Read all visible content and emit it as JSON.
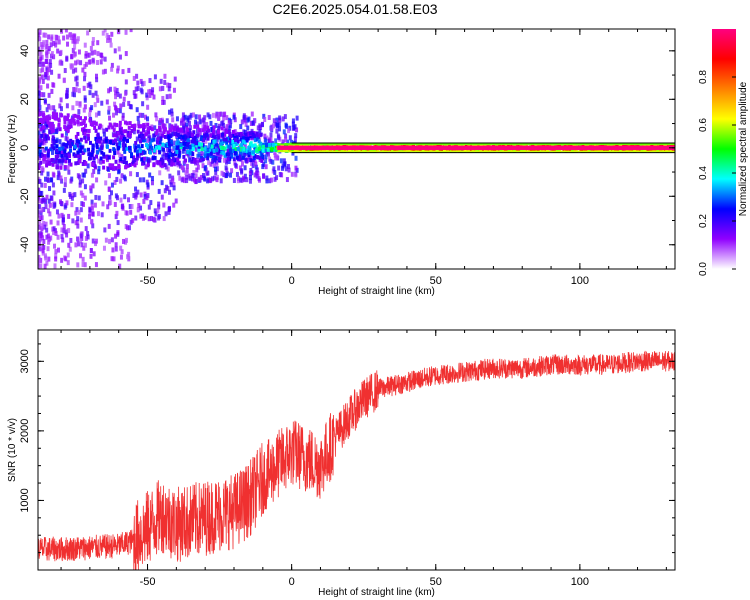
{
  "title": "C2E6.2025.054.01.58.E03",
  "chart_data": [
    {
      "type": "heatmap",
      "xlabel": "Height of straight line (km)",
      "ylabel": "Frequency (Hz)",
      "xlim": [
        -88,
        133
      ],
      "ylim": [
        -50,
        49
      ],
      "xticks": [
        -50,
        0,
        50,
        100
      ],
      "yticks": [
        40,
        20,
        0,
        -20,
        -40
      ],
      "xtick_labels": [
        "-50",
        "0",
        "50",
        "100"
      ],
      "ytick_labels": [
        "40",
        "20",
        "0",
        "-20",
        "-40"
      ],
      "reference_lines_hz": [
        2,
        -2
      ],
      "description_points": [
        {
          "x": -80,
          "f": 3,
          "amp": 0.3
        },
        {
          "x": -60,
          "f": 1,
          "amp": 0.35
        },
        {
          "x": -40,
          "f": 1,
          "amp": 0.4
        },
        {
          "x": -25,
          "f": 2,
          "amp": 0.45
        },
        {
          "x": -10,
          "f": 0,
          "amp": 0.5
        },
        {
          "x": 0,
          "f": 0,
          "amp": 0.9
        },
        {
          "x": 10,
          "f": 0,
          "amp": 0.95
        },
        {
          "x": 50,
          "f": 0,
          "amp": 1.0
        },
        {
          "x": 100,
          "f": 0,
          "amp": 1.0
        },
        {
          "x": 130,
          "f": 0,
          "amp": 1.0
        }
      ],
      "colorbar": {
        "label": "Normalized spectral amplitude",
        "range": [
          0,
          1
        ],
        "ticks": [
          0.0,
          0.2,
          0.4,
          0.6,
          0.8
        ],
        "tick_labels": [
          "0.0",
          "0.2",
          "0.4",
          "0.6",
          "0.8"
        ],
        "colors": [
          "#ffffff",
          "#9000ff",
          "#0000ff",
          "#00ffff",
          "#00ff00",
          "#ffff00",
          "#ff8000",
          "#ff0000",
          "#ff0080"
        ]
      }
    },
    {
      "type": "line",
      "xlabel": "Height of straight line (km)",
      "ylabel": "SNR (10 * v/v)",
      "xlim": [
        -88,
        133
      ],
      "ylim": [
        0,
        3450
      ],
      "xticks": [
        -50,
        0,
        50,
        100
      ],
      "yticks": [
        1000,
        2000,
        3000
      ],
      "xtick_labels": [
        "-50",
        "0",
        "50",
        "100"
      ],
      "ytick_labels": [
        "1000",
        "2000",
        "3000"
      ],
      "color": "#f03030",
      "series": [
        {
          "x": [
            -88,
            -80,
            -70,
            -60,
            -55,
            -50,
            -45,
            -40,
            -35,
            -30,
            -25,
            -20,
            -15,
            -10,
            -5,
            0,
            5,
            10,
            15,
            20,
            25,
            30,
            40,
            50,
            60,
            70,
            80,
            90,
            100,
            110,
            120,
            133
          ],
          "values": [
            300,
            300,
            320,
            350,
            420,
            600,
            800,
            650,
            700,
            750,
            800,
            850,
            1000,
            1300,
            1500,
            1700,
            1600,
            1500,
            1900,
            2200,
            2450,
            2600,
            2700,
            2800,
            2850,
            2900,
            2900,
            2950,
            2950,
            2950,
            3000,
            3000
          ]
        }
      ]
    }
  ]
}
